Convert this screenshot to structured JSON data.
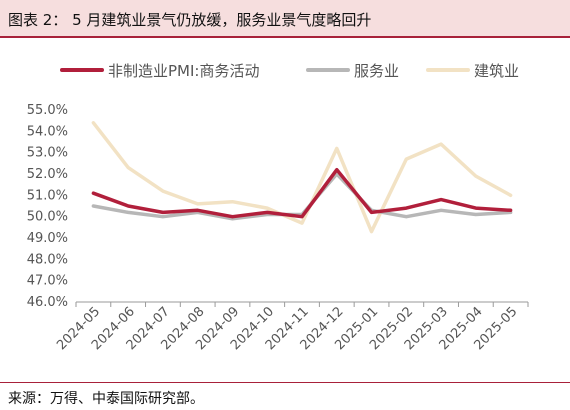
{
  "header": {
    "title": "图表 2：  5 月建筑业景气仍放缓，服务业景气度略回升"
  },
  "footer": {
    "source": "来源：万得、中泰国际研究部。"
  },
  "colors": {
    "accent": "#a8213a",
    "header_bg": "#f6dede"
  },
  "chart_data": {
    "type": "line",
    "title": "",
    "xlabel": "",
    "ylabel": "",
    "ylim": [
      46.0,
      55.0
    ],
    "y_ticks": [
      "46.0%",
      "47.0%",
      "48.0%",
      "49.0%",
      "50.0%",
      "51.0%",
      "52.0%",
      "53.0%",
      "54.0%",
      "55.0%"
    ],
    "y_tick_values": [
      46,
      47,
      48,
      49,
      50,
      51,
      52,
      53,
      54,
      55
    ],
    "categories": [
      "2024-05",
      "2024-06",
      "2024-07",
      "2024-08",
      "2024-09",
      "2024-10",
      "2024-11",
      "2024-12",
      "2025-01",
      "2025-02",
      "2025-03",
      "2025-04",
      "2025-05"
    ],
    "grid": false,
    "legend_position": "top",
    "series": [
      {
        "name": "非制造业PMI:商务活动",
        "color": "#b11f3b",
        "values": [
          51.1,
          50.5,
          50.2,
          50.3,
          50.0,
          50.2,
          50.0,
          52.2,
          50.2,
          50.4,
          50.8,
          50.4,
          50.3
        ]
      },
      {
        "name": "服务业",
        "color": "#b7b7b7",
        "values": [
          50.5,
          50.2,
          50.0,
          50.2,
          49.9,
          50.1,
          50.1,
          52.0,
          50.3,
          50.0,
          50.3,
          50.1,
          50.2
        ]
      },
      {
        "name": "建筑业",
        "color": "#f2e2c4",
        "values": [
          54.4,
          52.3,
          51.2,
          50.6,
          50.7,
          50.4,
          49.7,
          53.2,
          49.3,
          52.7,
          53.4,
          51.9,
          51.0
        ]
      }
    ]
  }
}
